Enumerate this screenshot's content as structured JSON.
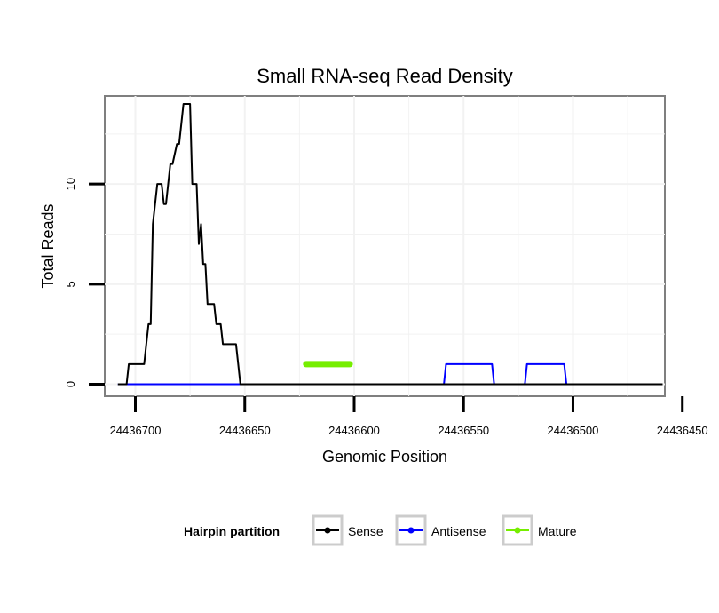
{
  "chart_data": {
    "type": "line",
    "title": "Small RNA-seq Read Density",
    "xlabel": "Genomic Position",
    "ylabel": "Total Reads",
    "x_reversed": true,
    "xlim": [
      24436458,
      24436714
    ],
    "ylim": [
      -0.6,
      14.4
    ],
    "x_ticks": [
      24436700,
      24436650,
      24436600,
      24436550,
      24436500,
      24436450
    ],
    "x_tick_labels": [
      "24436700",
      "24436650",
      "24436600",
      "24436550",
      "24436500",
      "24436450"
    ],
    "y_ticks": [
      0,
      5,
      10
    ],
    "y_tick_labels": [
      "0",
      "5",
      "10"
    ],
    "grid": true,
    "legend": {
      "title": "Hairpin partition",
      "position": "bottom",
      "entries": [
        {
          "name": "Sense",
          "color": "#000000"
        },
        {
          "name": "Antisense",
          "color": "#0000ff"
        },
        {
          "name": "Mature",
          "color": "#76ee00"
        }
      ]
    },
    "series": [
      {
        "name": "Sense",
        "color": "#000000",
        "x": [
          24436708,
          24436704,
          24436703,
          24436696,
          24436695,
          24436694,
          24436693,
          24436692,
          24436690,
          24436688,
          24436687,
          24436686,
          24436684,
          24436683,
          24436681,
          24436680,
          24436678,
          24436677,
          24436675,
          24436674,
          24436672,
          24436671,
          24436670,
          24436669,
          24436668,
          24436667,
          24436666,
          24436664,
          24436663,
          24436661,
          24436660,
          24436657,
          24436655,
          24436654,
          24436652,
          24436650,
          24436623,
          24436622,
          24436602,
          24436601,
          24436459
        ],
        "y": [
          0,
          0,
          1,
          1,
          2,
          3,
          3,
          8,
          10,
          10,
          9,
          9,
          11,
          11,
          12,
          12,
          14,
          14,
          14,
          10,
          10,
          7,
          8,
          6,
          6,
          4,
          4,
          4,
          3,
          3,
          2,
          2,
          2,
          2,
          0,
          0,
          0,
          0,
          0,
          0,
          0
        ]
      },
      {
        "name": "Antisense",
        "color": "#0000ff",
        "x": [
          24436708,
          24436559,
          24436558,
          24436537,
          24436536,
          24436522,
          24436521,
          24436504,
          24436503,
          24436459
        ],
        "y": [
          0,
          0,
          1,
          1,
          0,
          0,
          1,
          1,
          0,
          0
        ]
      },
      {
        "name": "Mature",
        "color": "#76ee00",
        "x": [
          24436622,
          24436602
        ],
        "y": [
          1,
          1
        ]
      }
    ]
  }
}
